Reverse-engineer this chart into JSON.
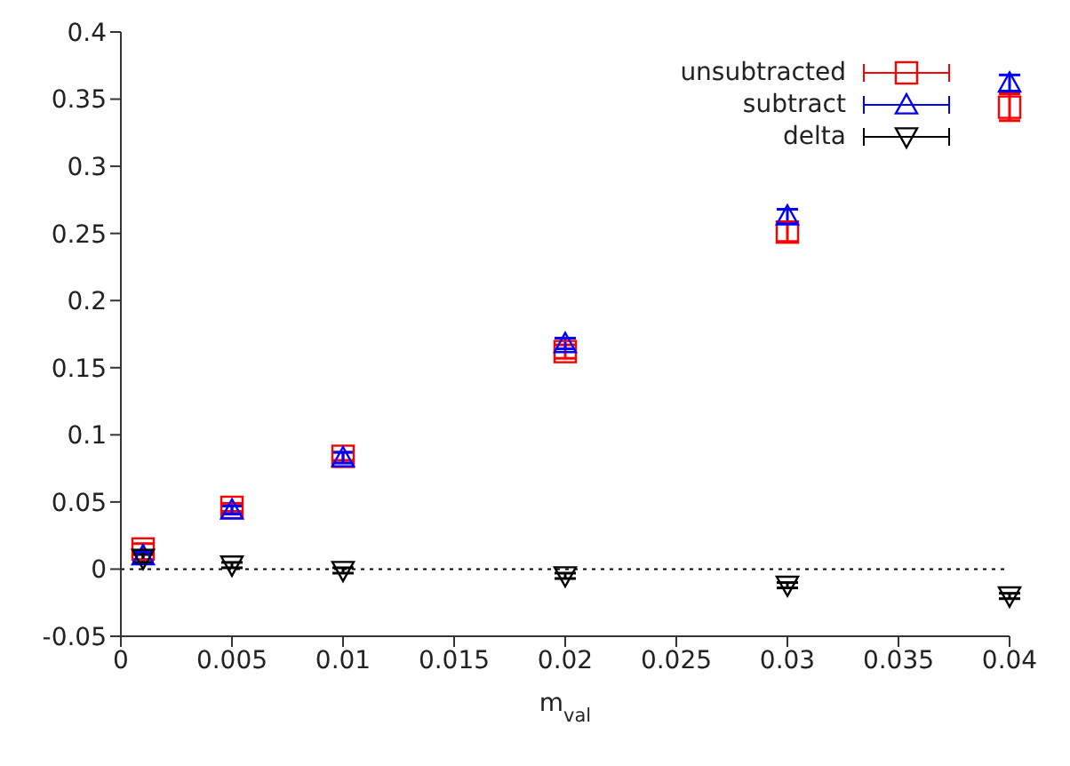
{
  "chart_data": {
    "type": "scatter",
    "xlabel": "m$_{val}$",
    "x": [
      0.001,
      0.005,
      0.01,
      0.02,
      0.03,
      0.04
    ],
    "series": [
      {
        "name": "unsubtracted",
        "color": "#ff0000",
        "marker": "square",
        "values": [
          0.015,
          0.046,
          0.084,
          0.162,
          0.251,
          0.344
        ],
        "errors": [
          0.004,
          0.003,
          0.003,
          0.005,
          0.007,
          0.01
        ]
      },
      {
        "name": "subtract",
        "color": "#0000ff",
        "marker": "triangle",
        "values": [
          0.01,
          0.044,
          0.083,
          0.168,
          0.263,
          0.362
        ],
        "errors": [
          0.003,
          0.003,
          0.004,
          0.004,
          0.005,
          0.006
        ]
      },
      {
        "name": "delta",
        "color": "#000000",
        "marker": "triangle-down",
        "values": [
          0.008,
          0.003,
          -0.001,
          -0.005,
          -0.012,
          -0.02
        ],
        "errors": [
          0.003,
          0.002,
          0.002,
          0.002,
          0.002,
          0.002
        ]
      }
    ],
    "xlim": [
      0,
      0.04
    ],
    "xticks": [
      0,
      0.005,
      0.01,
      0.015,
      0.02,
      0.025,
      0.03,
      0.035,
      0.04
    ],
    "ylim": [
      -0.05,
      0.4
    ],
    "yticks": [
      -0.05,
      0,
      0.05,
      0.1,
      0.15,
      0.2,
      0.25,
      0.3,
      0.35,
      0.4
    ],
    "ref_lines": [
      {
        "axis": "y",
        "value": 0,
        "color": "#000000",
        "line_style": "dotted"
      }
    ],
    "grid": false,
    "legend": "top right"
  }
}
